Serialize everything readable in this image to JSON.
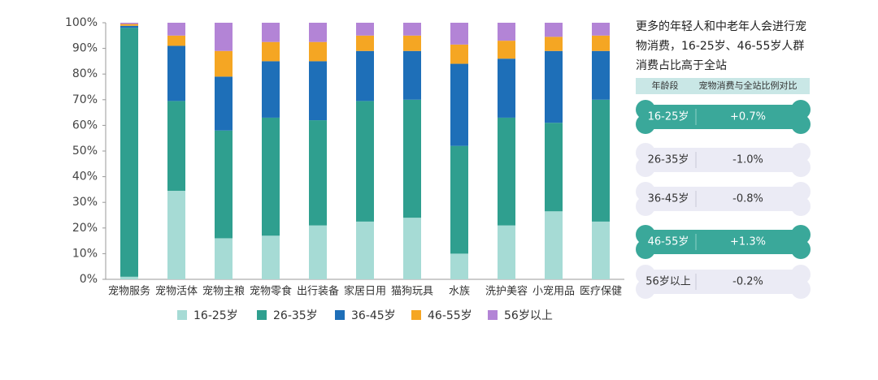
{
  "chart_data": {
    "type": "stacked_bar",
    "categories": [
      "宠物服务",
      "宠物活体",
      "宠物主粮",
      "宠物零食",
      "出行装备",
      "家居日用",
      "猫狗玩具",
      "水族",
      "洗护美容",
      "小宠用品",
      "医疗保健"
    ],
    "series": [
      {
        "name": "16-25岁",
        "color": "#a6dbd5",
        "values": [
          1,
          34.5,
          16,
          17,
          21,
          22.5,
          24,
          10,
          21,
          26.5,
          22.5
        ]
      },
      {
        "name": "26-35岁",
        "color": "#2f9f8f",
        "values": [
          97,
          35,
          42,
          46,
          41,
          47,
          46,
          42,
          42,
          34.5,
          47.5
        ]
      },
      {
        "name": "36-45岁",
        "color": "#1e6fb8",
        "values": [
          0.8,
          21.5,
          21,
          22,
          23,
          19.5,
          19,
          32,
          23,
          28,
          19
        ]
      },
      {
        "name": "46-55岁",
        "color": "#f5a623",
        "values": [
          0.7,
          4,
          10,
          7.5,
          7.5,
          6,
          6,
          7.5,
          7,
          5.5,
          6
        ]
      },
      {
        "name": "56岁以上",
        "color": "#b384d6",
        "values": [
          0.5,
          5,
          11,
          7.5,
          7.5,
          5,
          5,
          8.5,
          7,
          5.5,
          5
        ]
      }
    ],
    "ylim": [
      0,
      100
    ],
    "yticks": [
      {
        "value": 0,
        "label": "0%"
      },
      {
        "value": 10,
        "label": "10%"
      },
      {
        "value": 20,
        "label": "20%"
      },
      {
        "value": 30,
        "label": "30%"
      },
      {
        "value": 40,
        "label": "40%"
      },
      {
        "value": 50,
        "label": "50%"
      },
      {
        "value": 60,
        "label": "60%"
      },
      {
        "value": 70,
        "label": "70%"
      },
      {
        "value": 80,
        "label": "80%"
      },
      {
        "value": 90,
        "label": "90%"
      },
      {
        "value": 100,
        "label": "100%"
      }
    ]
  },
  "side": {
    "title_lines": [
      "更多的年轻人和中老年人会进行宠",
      "物消费，16-25岁、46-55岁人群",
      "消费占比高于全站"
    ],
    "table": {
      "header": [
        "年龄段",
        "宠物消费与全站比例对比"
      ],
      "rows": [
        {
          "cells": [
            "16-25岁",
            "+0.7%"
          ],
          "highlight": true
        },
        {
          "cells": [
            "26-35岁",
            "-1.0%"
          ],
          "highlight": false
        },
        {
          "cells": [
            "36-45岁",
            "-0.8%"
          ],
          "highlight": false
        },
        {
          "cells": [
            "46-55岁",
            "+1.3%"
          ],
          "highlight": true
        },
        {
          "cells": [
            "56岁以上",
            "-0.2%"
          ],
          "highlight": false
        }
      ]
    }
  }
}
